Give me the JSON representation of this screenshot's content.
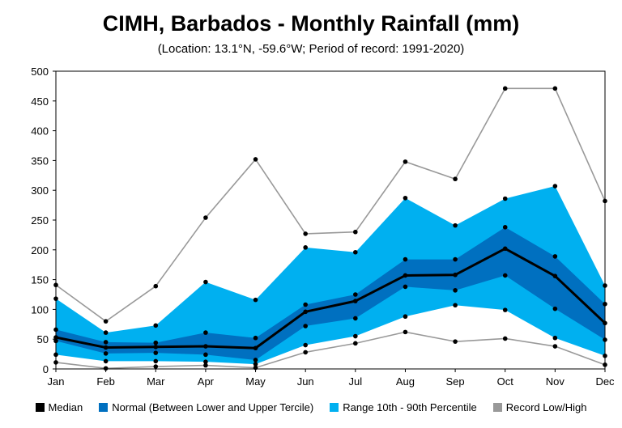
{
  "title": "CIMH, Barbados - Monthly Rainfall (mm)",
  "subtitle": "(Location: 13.1°N, -59.6°W; Period of record: 1991-2020)",
  "colors": {
    "median": "#000000",
    "normal": "#0070C0",
    "range": "#00B0F0",
    "record": "#999999"
  },
  "legend": [
    {
      "key": "median",
      "label": "Median"
    },
    {
      "key": "normal",
      "label": "Normal (Between Lower and Upper Tercile)"
    },
    {
      "key": "range",
      "label": "Range 10th - 90th Percentile"
    },
    {
      "key": "record",
      "label": "Record Low/High"
    }
  ],
  "chart_data": {
    "type": "area",
    "categories": [
      "Jan",
      "Feb",
      "Mar",
      "Apr",
      "May",
      "Jun",
      "Jul",
      "Aug",
      "Sep",
      "Oct",
      "Nov",
      "Dec"
    ],
    "ylim": [
      0,
      500
    ],
    "yticks": [
      0,
      50,
      100,
      150,
      200,
      250,
      300,
      350,
      400,
      450,
      500
    ],
    "grid": false,
    "legend_position": "bottom",
    "series": [
      {
        "name": "Median",
        "key": "median",
        "values": [
          53,
          36,
          37,
          38,
          35,
          96,
          114,
          157,
          158,
          202,
          156,
          77
        ]
      },
      {
        "name": "Record Low/High",
        "key": "record_high",
        "values": [
          141,
          80,
          139,
          254,
          352,
          227,
          230,
          348,
          319,
          471,
          471,
          282
        ]
      },
      {
        "name": "Record Low/High",
        "key": "record_low",
        "values": [
          11,
          1,
          4,
          6,
          2,
          28,
          43,
          62,
          46,
          51,
          38,
          7
        ]
      },
      {
        "name": "Range 10th - 90th Percentile",
        "key": "p90",
        "values": [
          118,
          61,
          73,
          146,
          116,
          204,
          196,
          287,
          241,
          286,
          307,
          140
        ]
      },
      {
        "name": "Range 10th - 90th Percentile",
        "key": "p10",
        "values": [
          24,
          13,
          13,
          12,
          8,
          40,
          55,
          88,
          107,
          99,
          52,
          22
        ]
      },
      {
        "name": "Normal (Between Lower and Upper Tercile)",
        "key": "upper_tercile",
        "values": [
          66,
          45,
          44,
          61,
          52,
          108,
          125,
          184,
          184,
          238,
          189,
          109
        ]
      },
      {
        "name": "Normal (Between Lower and Upper Tercile)",
        "key": "lower_tercile",
        "values": [
          47,
          26,
          27,
          24,
          15,
          72,
          85,
          138,
          132,
          157,
          101,
          49
        ]
      }
    ]
  }
}
